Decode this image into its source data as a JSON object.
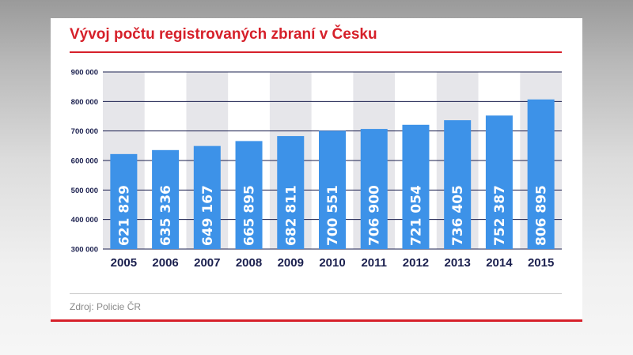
{
  "chart_data": {
    "type": "bar",
    "title": "Vývoj počtu registrovaných zbraní v Česku",
    "categories": [
      "2005",
      "2006",
      "2007",
      "2008",
      "2009",
      "2010",
      "2011",
      "2012",
      "2013",
      "2014",
      "2015"
    ],
    "values": [
      621829,
      635336,
      649167,
      665895,
      682811,
      700551,
      706900,
      721054,
      736405,
      752387,
      806895
    ],
    "value_labels": [
      "621 829",
      "635 336",
      "649 167",
      "665 895",
      "682 811",
      "700 551",
      "706 900",
      "721 054",
      "736 405",
      "752 387",
      "806 895"
    ],
    "ylim": [
      300000,
      900000
    ],
    "yticks": [
      300000,
      400000,
      500000,
      600000,
      700000,
      800000,
      900000
    ],
    "ytick_labels": [
      "300 000",
      "400 000",
      "500 000",
      "600 000",
      "700 000",
      "800 000",
      "900 000"
    ],
    "xlabel": "",
    "ylabel": "",
    "grid": true,
    "colors": {
      "bar": "#3d92e8",
      "band": "#e6e6ea",
      "gridline": "#1a1f4e",
      "title": "#d6202a"
    }
  },
  "source": "Zdroj: Policie ČR"
}
